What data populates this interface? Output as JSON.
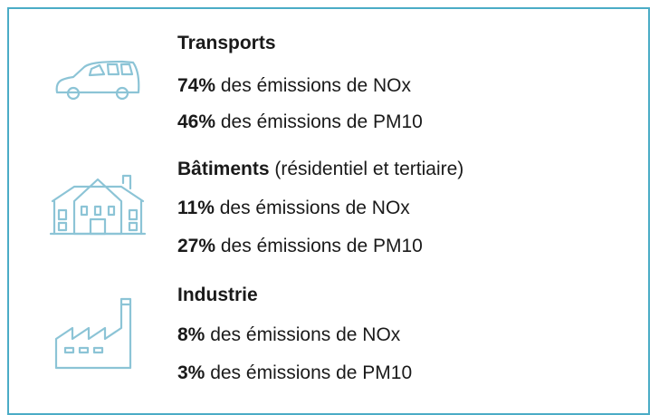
{
  "sectors": [
    {
      "name": "Transports",
      "lines": [
        {
          "share": "74%",
          "text": "des émissions de NOx"
        },
        {
          "share": "46%",
          "text": "des émissions de PM10"
        }
      ]
    },
    {
      "name": "Bâtiments",
      "qualifier": "(résidentiel et tertiaire)",
      "lines": [
        {
          "share": "11%",
          "text": "des émissions de NOx"
        },
        {
          "share": "27%",
          "text": "des émissions de PM10"
        }
      ]
    },
    {
      "name": "Industrie",
      "lines": [
        {
          "share": "8%",
          "text": "des émissions de NOx"
        },
        {
          "share": "3%",
          "text": "des émissions de PM10"
        }
      ]
    }
  ]
}
